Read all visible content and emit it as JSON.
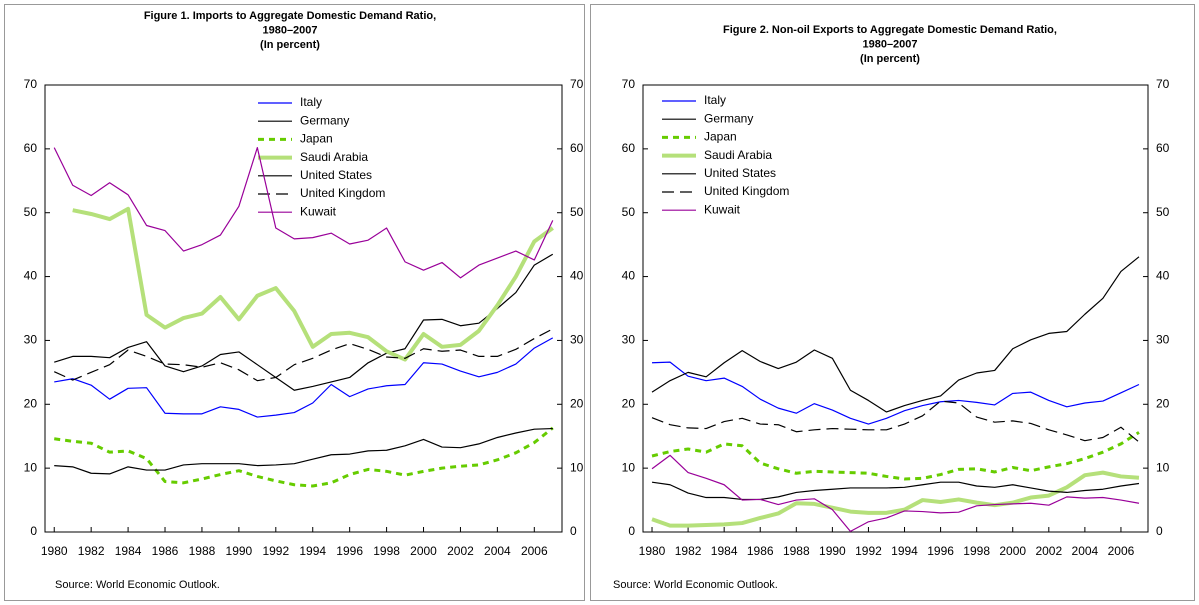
{
  "chart_data": [
    {
      "type": "line",
      "title": [
        "Figure 1. Imports to Aggregate Domestic Demand Ratio,",
        "1980–2007",
        "(In percent)"
      ],
      "source": "Source: World Economic Outlook.",
      "x": [
        1980,
        1981,
        1982,
        1983,
        1984,
        1985,
        1986,
        1987,
        1988,
        1989,
        1990,
        1991,
        1992,
        1993,
        1994,
        1995,
        1996,
        1997,
        1998,
        1999,
        2000,
        2001,
        2002,
        2003,
        2004,
        2005,
        2006,
        2007
      ],
      "xlim": [
        1979.5,
        2007.5
      ],
      "xticks": [
        1980,
        1982,
        1984,
        1986,
        1988,
        1990,
        1992,
        1994,
        1996,
        1998,
        2000,
        2002,
        2004,
        2006
      ],
      "ylim": [
        0,
        70
      ],
      "yticks": [
        0,
        10,
        20,
        30,
        40,
        50,
        60,
        70
      ],
      "y2lim": [
        0,
        70
      ],
      "y2ticks": [
        0,
        10,
        20,
        30,
        40,
        50,
        60,
        70
      ],
      "series": [
        {
          "name": "Italy",
          "color": "#0000ff",
          "style": "solid",
          "values": [
            23.5,
            24,
            23,
            20.8,
            22.5,
            22.6,
            18.6,
            18.5,
            18.5,
            19.6,
            19.2,
            18,
            18.3,
            18.7,
            20.2,
            23.1,
            21.2,
            22.4,
            22.9,
            23.1,
            26.5,
            26.3,
            25.2,
            24.3,
            25,
            26.3,
            28.8,
            30.4
          ]
        },
        {
          "name": "Germany",
          "color": "#000000",
          "style": "solid",
          "values": [
            26.6,
            27.5,
            27.5,
            27.3,
            28.9,
            29.8,
            26,
            25.1,
            26,
            27.8,
            28.2,
            26.2,
            24.2,
            22.2,
            22.8,
            23.5,
            24.2,
            26.5,
            28,
            28.7,
            33.2,
            33.3,
            32.3,
            32.7,
            35,
            37.5,
            41.8,
            43.5
          ]
        },
        {
          "name": "Japan",
          "color": "#66cc00",
          "style": "dotted",
          "values": [
            14.6,
            14.2,
            13.9,
            12.5,
            12.7,
            11.5,
            7.9,
            7.7,
            8.3,
            9,
            9.6,
            8.7,
            8,
            7.4,
            7.2,
            7.7,
            9,
            9.8,
            9.5,
            8.9,
            9.5,
            10,
            10.3,
            10.5,
            11.3,
            12.4,
            14,
            16.3
          ]
        },
        {
          "name": "Saudi Arabia",
          "color": "#b5e07a",
          "style": "thick",
          "values": [
            null,
            50.4,
            49.8,
            49,
            50.6,
            34,
            32,
            33.5,
            34.2,
            36.8,
            33.3,
            37,
            38.2,
            34.6,
            29,
            31,
            31.2,
            30.5,
            28.3,
            27,
            31,
            29,
            29.3,
            31.5,
            35.5,
            40,
            45.5,
            47.6
          ]
        },
        {
          "name": "United States",
          "color": "#000000",
          "style": "solid",
          "values": [
            10.4,
            10.2,
            9.2,
            9.1,
            10.2,
            9.7,
            9.7,
            10.5,
            10.7,
            10.7,
            10.7,
            10.4,
            10.5,
            10.7,
            11.4,
            12.1,
            12.2,
            12.7,
            12.8,
            13.5,
            14.5,
            13.3,
            13.2,
            13.8,
            14.8,
            15.5,
            16.1,
            16.2
          ]
        },
        {
          "name": "United Kingdom",
          "color": "#000000",
          "style": "dashed",
          "values": [
            25.1,
            23.8,
            25,
            26.2,
            28.5,
            27.5,
            26.3,
            26.2,
            25.8,
            26.5,
            25.4,
            23.7,
            24.2,
            26.2,
            27.2,
            28.5,
            29.5,
            28.6,
            27.4,
            27.2,
            28.7,
            28.3,
            28.5,
            27.5,
            27.5,
            28.6,
            30.3,
            31.8
          ]
        },
        {
          "name": "Kuwait",
          "color": "#990099",
          "style": "solid",
          "values": [
            60.2,
            54.3,
            52.7,
            54.7,
            52.8,
            48,
            47.2,
            44,
            45,
            46.5,
            51,
            60.2,
            47.6,
            45.9,
            46.1,
            46.8,
            45.1,
            45.7,
            47.6,
            42.3,
            41,
            42.2,
            39.8,
            41.8,
            42.9,
            44,
            42.6,
            48.8
          ]
        }
      ]
    },
    {
      "type": "line",
      "title": [
        "Figure 2. Non-oil Exports to Aggregate Domestic Demand Ratio,",
        "1980–2007",
        "(In percent)"
      ],
      "source": "Source: World Economic Outlook.",
      "x": [
        1980,
        1981,
        1982,
        1983,
        1984,
        1985,
        1986,
        1987,
        1988,
        1989,
        1990,
        1991,
        1992,
        1993,
        1994,
        1995,
        1996,
        1997,
        1998,
        1999,
        2000,
        2001,
        2002,
        2003,
        2004,
        2005,
        2006,
        2007
      ],
      "xlim": [
        1979.5,
        2007.5
      ],
      "xticks": [
        1980,
        1982,
        1984,
        1986,
        1988,
        1990,
        1992,
        1994,
        1996,
        1998,
        2000,
        2002,
        2004,
        2006
      ],
      "ylim": [
        0,
        70
      ],
      "yticks": [
        0,
        10,
        20,
        30,
        40,
        50,
        60,
        70
      ],
      "y2lim": [
        0,
        70
      ],
      "y2ticks": [
        0,
        10,
        20,
        30,
        40,
        50,
        60,
        70
      ],
      "series": [
        {
          "name": "Italy",
          "color": "#0000ff",
          "style": "solid",
          "values": [
            26.5,
            26.6,
            24.4,
            23.7,
            24.1,
            22.8,
            20.8,
            19.4,
            18.6,
            20.1,
            19.1,
            17.8,
            16.9,
            17.8,
            19,
            19.8,
            20.4,
            20.6,
            20.3,
            19.9,
            21.7,
            21.9,
            20.6,
            19.6,
            20.2,
            20.5,
            21.8,
            23.1
          ]
        },
        {
          "name": "Germany",
          "color": "#000000",
          "style": "solid",
          "values": [
            21.9,
            23.7,
            25,
            24.3,
            26.5,
            28.4,
            26.7,
            25.6,
            26.6,
            28.5,
            27.2,
            22.2,
            20.6,
            18.8,
            19.8,
            20.6,
            21.3,
            23.8,
            24.9,
            25.3,
            28.7,
            30.1,
            31.1,
            31.4,
            34.1,
            36.6,
            40.8,
            43.1
          ]
        },
        {
          "name": "Japan",
          "color": "#66cc00",
          "style": "dotted",
          "values": [
            11.9,
            12.6,
            13,
            12.5,
            13.8,
            13.5,
            10.8,
            9.9,
            9.2,
            9.5,
            9.4,
            9.3,
            9.2,
            8.7,
            8.3,
            8.4,
            9,
            9.8,
            9.9,
            9.4,
            10.1,
            9.6,
            10.2,
            10.7,
            11.5,
            12.5,
            13.8,
            15.6
          ]
        },
        {
          "name": "Saudi Arabia",
          "color": "#b5e07a",
          "style": "thick",
          "values": [
            2,
            1,
            1,
            1.1,
            1.2,
            1.4,
            2.2,
            2.9,
            4.5,
            4.4,
            3.8,
            3.2,
            3,
            3,
            3.5,
            5,
            4.7,
            5.1,
            4.6,
            4.2,
            4.6,
            5.4,
            5.7,
            7,
            8.9,
            9.3,
            8.7,
            8.5
          ]
        },
        {
          "name": "United States",
          "color": "#000000",
          "style": "solid",
          "values": [
            7.8,
            7.4,
            6.1,
            5.4,
            5.4,
            5.1,
            5.1,
            5.5,
            6.2,
            6.5,
            6.7,
            6.9,
            6.9,
            6.9,
            7,
            7.4,
            7.8,
            7.8,
            7.2,
            7,
            7.4,
            6.9,
            6.4,
            6.2,
            6.5,
            6.7,
            7.2,
            7.6
          ]
        },
        {
          "name": "United Kingdom",
          "color": "#000000",
          "style": "dashed",
          "values": [
            17.9,
            16.8,
            16.3,
            16.2,
            17.3,
            17.8,
            16.9,
            16.8,
            15.7,
            16,
            16.2,
            16.1,
            16,
            16,
            16.9,
            18.2,
            20.5,
            20.2,
            18,
            17.2,
            17.4,
            17,
            16,
            15.2,
            14.3,
            14.8,
            16.4,
            14.1
          ]
        },
        {
          "name": "Kuwait",
          "color": "#990099",
          "style": "solid",
          "values": [
            9.9,
            12,
            9.3,
            8.4,
            7.4,
            5,
            5.1,
            4.3,
            5,
            5.2,
            3.5,
            0.1,
            1.6,
            2.2,
            3.3,
            3.2,
            3,
            3.1,
            4.1,
            4.3,
            4.4,
            4.5,
            4.2,
            5.5,
            5.3,
            5.4,
            5,
            4.5
          ]
        }
      ]
    }
  ]
}
